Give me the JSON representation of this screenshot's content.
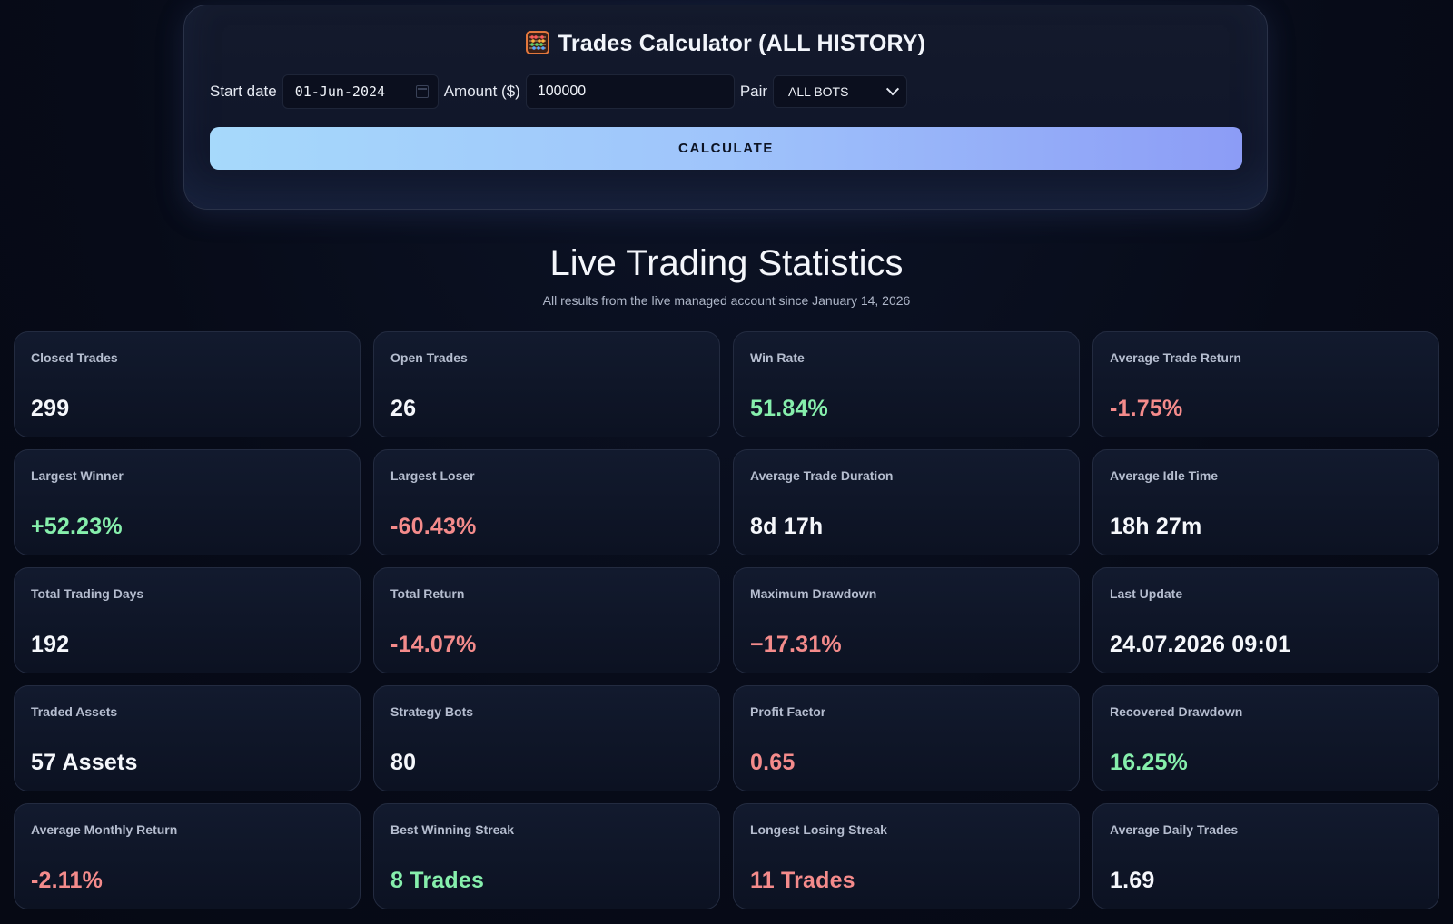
{
  "calculator": {
    "title": "Trades Calculator (ALL HISTORY)",
    "start_date_label": "Start date",
    "start_date_value": "01-Jun-2024",
    "amount_label": "Amount ($)",
    "amount_value": "100000",
    "pair_label": "Pair",
    "pair_value": "ALL BOTS",
    "button_label": "CALCULATE"
  },
  "stats": {
    "title": "Live Trading Statistics",
    "subtitle": "All results from the live managed account since January 14, 2026",
    "cards": [
      {
        "label": "Closed Trades",
        "value": "299",
        "tone": "neutral"
      },
      {
        "label": "Open Trades",
        "value": "26",
        "tone": "neutral"
      },
      {
        "label": "Win Rate",
        "value": "51.84%",
        "tone": "pos"
      },
      {
        "label": "Average Trade Return",
        "value": "-1.75%",
        "tone": "neg"
      },
      {
        "label": "Largest Winner",
        "value": "+52.23%",
        "tone": "pos"
      },
      {
        "label": "Largest Loser",
        "value": "-60.43%",
        "tone": "neg"
      },
      {
        "label": "Average Trade Duration",
        "value": "8d 17h",
        "tone": "neutral"
      },
      {
        "label": "Average Idle Time",
        "value": "18h 27m",
        "tone": "neutral"
      },
      {
        "label": "Total Trading Days",
        "value": "192",
        "tone": "neutral"
      },
      {
        "label": "Total Return",
        "value": "-14.07%",
        "tone": "neg"
      },
      {
        "label": "Maximum Drawdown",
        "value": "−17.31%",
        "tone": "neg"
      },
      {
        "label": "Last Update",
        "value": "24.07.2026 09:01",
        "tone": "neutral"
      },
      {
        "label": "Traded Assets",
        "value": "57 Assets",
        "tone": "neutral"
      },
      {
        "label": "Strategy Bots",
        "value": "80",
        "tone": "neutral"
      },
      {
        "label": "Profit Factor",
        "value": "0.65",
        "tone": "neg"
      },
      {
        "label": "Recovered Drawdown",
        "value": "16.25%",
        "tone": "pos"
      },
      {
        "label": "Average Monthly Return",
        "value": "-2.11%",
        "tone": "neg"
      },
      {
        "label": "Best Winning Streak",
        "value": "8 Trades",
        "tone": "pos"
      },
      {
        "label": "Longest Losing Streak",
        "value": "11 Trades",
        "tone": "neg"
      },
      {
        "label": "Average Daily Trades",
        "value": "1.69",
        "tone": "neutral"
      }
    ]
  },
  "colors": {
    "positive": "#86efac",
    "negative": "#f48b8b",
    "neutral": "#f5f7fb",
    "button_gradient_start": "#a6d9fb",
    "button_gradient_end": "#8c9cf6"
  },
  "icons": {
    "title_icon": "abacus-icon",
    "date_icon": "calendar-icon",
    "select_icon": "chevron-down-icon"
  }
}
